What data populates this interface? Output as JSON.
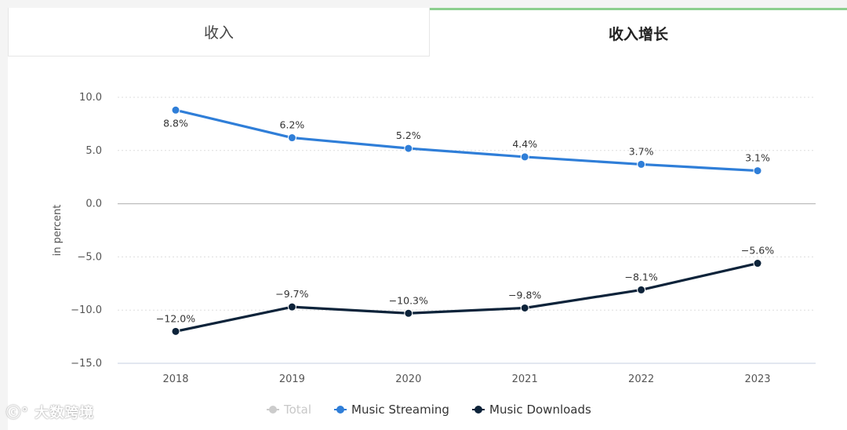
{
  "tabs": [
    {
      "label": "收入",
      "active": false
    },
    {
      "label": "收入增长",
      "active": true
    }
  ],
  "watermark": "大数跨境",
  "chart_data": {
    "type": "line",
    "title": "",
    "xlabel": "",
    "ylabel": "in percent",
    "x": [
      "2018",
      "2019",
      "2020",
      "2021",
      "2022",
      "2023"
    ],
    "ylim": [
      -15,
      10
    ],
    "yticks": [
      10,
      5,
      0,
      -5,
      -10,
      -15
    ],
    "ytick_labels": [
      "10.0",
      "5.0",
      "0.0",
      "−5.0",
      "−10.0",
      "−15.0"
    ],
    "grid": true,
    "legend_position": "bottom-center",
    "series": [
      {
        "name": "Music Streaming",
        "color": "#2f7ed8",
        "values": [
          8.8,
          6.2,
          5.2,
          4.4,
          3.7,
          3.1
        ],
        "labels": [
          "8.8%",
          "6.2%",
          "5.2%",
          "4.4%",
          "3.7%",
          "3.1%"
        ]
      },
      {
        "name": "Music Downloads",
        "color": "#0d233a",
        "values": [
          -12.0,
          -9.7,
          -10.3,
          -9.8,
          -8.1,
          -5.6
        ],
        "labels": [
          "−12.0%",
          "−9.7%",
          "−10.3%",
          "−9.8%",
          "−8.1%",
          "−5.6%"
        ]
      }
    ],
    "legend": [
      {
        "name": "Total",
        "color": "#cccccc",
        "hidden": true
      },
      {
        "name": "Music Streaming",
        "color": "#2f7ed8",
        "hidden": false
      },
      {
        "name": "Music Downloads",
        "color": "#0d233a",
        "hidden": false
      }
    ]
  }
}
